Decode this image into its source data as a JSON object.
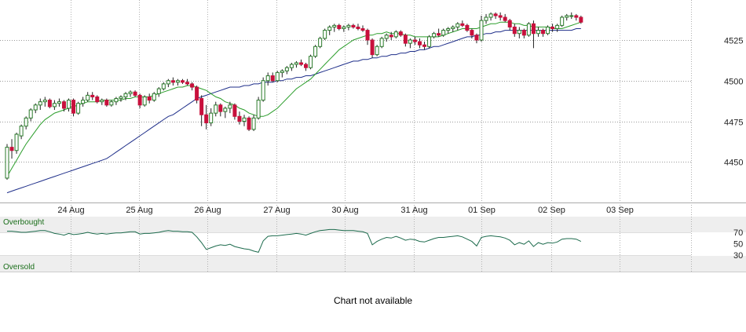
{
  "chart_data": [
    {
      "type": "candlestick",
      "x_tick_labels": [
        "24 Aug",
        "25 Aug",
        "26 Aug",
        "27 Aug",
        "30 Aug",
        "31 Aug",
        "01 Sep",
        "02 Sep",
        "03 Sep"
      ],
      "y_tick_labels": [
        "4450",
        "4475",
        "4500",
        "4525"
      ],
      "ylim": [
        4428,
        4553
      ],
      "grid": true,
      "colors": {
        "up": "#ffffff",
        "down": "#c8103c",
        "wick": "#222222",
        "sma_short": "#2a9d2a",
        "sma_long": "#1f2f8a",
        "grid": "#9a9a9a"
      },
      "candles": [
        [
          4440,
          4461,
          4439,
          4459
        ],
        [
          4459,
          4464,
          4452,
          4457
        ],
        [
          4457,
          4468,
          4455,
          4467
        ],
        [
          4466,
          4473,
          4464,
          4472
        ],
        [
          4472,
          4478,
          4470,
          4477
        ],
        [
          4477,
          4483,
          4475,
          4482
        ],
        [
          4482,
          4486,
          4480,
          4485
        ],
        [
          4485,
          4489,
          4482,
          4487
        ],
        [
          4487,
          4490,
          4484,
          4488
        ],
        [
          4488,
          4489,
          4483,
          4484
        ],
        [
          4484,
          4488,
          4482,
          4486
        ],
        [
          4486,
          4489,
          4484,
          4487
        ],
        [
          4487,
          4488,
          4481,
          4483
        ],
        [
          4483,
          4489,
          4481,
          4488
        ],
        [
          4488,
          4489,
          4478,
          4480
        ],
        [
          4480,
          4487,
          4479,
          4486
        ],
        [
          4486,
          4490,
          4484,
          4488
        ],
        [
          4488,
          4493,
          4487,
          4491
        ],
        [
          4491,
          4493,
          4488,
          4490
        ],
        [
          4490,
          4491,
          4486,
          4487
        ],
        [
          4487,
          4489,
          4485,
          4488
        ],
        [
          4488,
          4489,
          4484,
          4485
        ],
        [
          4485,
          4488,
          4484,
          4487
        ],
        [
          4487,
          4490,
          4485,
          4489
        ],
        [
          4489,
          4491,
          4487,
          4490
        ],
        [
          4490,
          4493,
          4488,
          4492
        ],
        [
          4492,
          4494,
          4490,
          4493
        ],
        [
          4493,
          4494,
          4490,
          4491
        ],
        [
          4491,
          4492,
          4483,
          4485
        ],
        [
          4485,
          4491,
          4484,
          4490
        ],
        [
          4490,
          4492,
          4486,
          4488
        ],
        [
          4488,
          4493,
          4487,
          4492
        ],
        [
          4492,
          4496,
          4490,
          4495
        ],
        [
          4495,
          4499,
          4494,
          4498
        ],
        [
          4498,
          4501,
          4496,
          4500
        ],
        [
          4500,
          4502,
          4497,
          4499
        ],
        [
          4499,
          4501,
          4497,
          4500
        ],
        [
          4500,
          4501,
          4498,
          4499
        ],
        [
          4499,
          4501,
          4497,
          4498
        ],
        [
          4498,
          4499,
          4494,
          4496
        ],
        [
          4496,
          4497,
          4486,
          4488
        ],
        [
          4489,
          4491,
          4472,
          4479
        ],
        [
          4479,
          4485,
          4470,
          4474
        ],
        [
          4474,
          4483,
          4472,
          4480
        ],
        [
          4480,
          4487,
          4478,
          4485
        ],
        [
          4485,
          4486,
          4478,
          4481
        ],
        [
          4481,
          4484,
          4477,
          4483
        ],
        [
          4483,
          4487,
          4480,
          4485
        ],
        [
          4485,
          4486,
          4476,
          4478
        ],
        [
          4478,
          4481,
          4473,
          4475
        ],
        [
          4475,
          4479,
          4472,
          4477
        ],
        [
          4477,
          4478,
          4469,
          4470
        ],
        [
          4470,
          4479,
          4469,
          4477
        ],
        [
          4477,
          4490,
          4476,
          4488
        ],
        [
          4488,
          4502,
          4487,
          4500
        ],
        [
          4500,
          4505,
          4497,
          4503
        ],
        [
          4503,
          4505,
          4499,
          4500
        ],
        [
          4500,
          4506,
          4499,
          4505
        ],
        [
          4505,
          4507,
          4502,
          4506
        ],
        [
          4506,
          4509,
          4504,
          4508
        ],
        [
          4508,
          4511,
          4506,
          4510
        ],
        [
          4510,
          4512,
          4508,
          4511
        ],
        [
          4511,
          4513,
          4509,
          4510
        ],
        [
          4510,
          4511,
          4506,
          4508
        ],
        [
          4508,
          4516,
          4507,
          4515
        ],
        [
          4515,
          4522,
          4514,
          4521
        ],
        [
          4521,
          4527,
          4520,
          4526
        ],
        [
          4526,
          4532,
          4525,
          4531
        ],
        [
          4531,
          4534,
          4528,
          4533
        ],
        [
          4533,
          4535,
          4530,
          4534
        ],
        [
          4534,
          4535,
          4531,
          4532
        ],
        [
          4532,
          4534,
          4530,
          4533
        ],
        [
          4533,
          4535,
          4531,
          4534
        ],
        [
          4534,
          4535,
          4532,
          4533
        ],
        [
          4533,
          4535,
          4531,
          4532
        ],
        [
          4532,
          4534,
          4530,
          4531
        ],
        [
          4531,
          4532,
          4522,
          4525
        ],
        [
          4525,
          4526,
          4514,
          4516
        ],
        [
          4516,
          4522,
          4515,
          4521
        ],
        [
          4521,
          4527,
          4520,
          4526
        ],
        [
          4526,
          4529,
          4524,
          4528
        ],
        [
          4528,
          4530,
          4525,
          4527
        ],
        [
          4527,
          4531,
          4526,
          4530
        ],
        [
          4530,
          4531,
          4527,
          4528
        ],
        [
          4528,
          4529,
          4521,
          4523
        ],
        [
          4523,
          4526,
          4520,
          4525
        ],
        [
          4525,
          4527,
          4522,
          4524
        ],
        [
          4524,
          4526,
          4520,
          4522
        ],
        [
          4522,
          4524,
          4519,
          4521
        ],
        [
          4521,
          4528,
          4520,
          4527
        ],
        [
          4527,
          4530,
          4526,
          4529
        ],
        [
          4529,
          4532,
          4527,
          4528
        ],
        [
          4528,
          4532,
          4527,
          4531
        ],
        [
          4531,
          4533,
          4529,
          4532
        ],
        [
          4532,
          4534,
          4530,
          4533
        ],
        [
          4533,
          4536,
          4531,
          4535
        ],
        [
          4535,
          4537,
          4533,
          4534
        ],
        [
          4534,
          4535,
          4530,
          4531
        ],
        [
          4531,
          4532,
          4526,
          4528
        ],
        [
          4528,
          4529,
          4523,
          4525
        ],
        [
          4525,
          4540,
          4524,
          4537
        ],
        [
          4537,
          4541,
          4535,
          4539
        ],
        [
          4539,
          4542,
          4537,
          4541
        ],
        [
          4541,
          4542,
          4538,
          4540
        ],
        [
          4540,
          4542,
          4537,
          4539
        ],
        [
          4539,
          4541,
          4536,
          4537
        ],
        [
          4537,
          4538,
          4531,
          4533
        ],
        [
          4533,
          4535,
          4527,
          4529
        ],
        [
          4529,
          4533,
          4526,
          4531
        ],
        [
          4531,
          4532,
          4526,
          4528
        ],
        [
          4528,
          4536,
          4527,
          4535
        ],
        [
          4535,
          4537,
          4520,
          4529
        ],
        [
          4529,
          4533,
          4527,
          4531
        ],
        [
          4531,
          4532,
          4527,
          4529
        ],
        [
          4529,
          4534,
          4528,
          4533
        ],
        [
          4533,
          4535,
          4530,
          4532
        ],
        [
          4532,
          4535,
          4530,
          4534
        ],
        [
          4534,
          4540,
          4533,
          4539
        ],
        [
          4539,
          4541,
          4537,
          4540
        ],
        [
          4540,
          4542,
          4538,
          4540
        ],
        [
          4540,
          4541,
          4537,
          4539
        ],
        [
          4539,
          4540,
          4535,
          4536
        ]
      ],
      "sma_short": [
        4441,
        4446,
        4451,
        4456,
        4461,
        4465,
        4469,
        4473,
        4476,
        4478,
        4480,
        4481,
        4482,
        4483,
        4484,
        4485,
        4486,
        4487,
        4487,
        4487,
        4488,
        4488,
        4488,
        4488,
        4488,
        4489,
        4489,
        4490,
        4490,
        4490,
        4490,
        4491,
        4492,
        4493,
        4494,
        4495,
        4496,
        4496,
        4497,
        4497,
        4496,
        4495,
        4494,
        4492,
        4490,
        4489,
        4487,
        4486,
        4485,
        4483,
        4482,
        4480,
        4479,
        4478,
        4478,
        4479,
        4481,
        4483,
        4486,
        4489,
        4492,
        4495,
        4497,
        4499,
        4501,
        4504,
        4507,
        4510,
        4513,
        4516,
        4519,
        4521,
        4523,
        4525,
        4526,
        4527,
        4528,
        4528,
        4529,
        4529,
        4530,
        4529,
        4529,
        4529,
        4528,
        4528,
        4527,
        4527,
        4527,
        4527,
        4527,
        4527,
        4528,
        4529,
        4530,
        4531,
        4532,
        4532,
        4532,
        4532,
        4533,
        4534,
        4535,
        4535,
        4536,
        4536,
        4536,
        4535,
        4535,
        4534,
        4534,
        4533,
        4533,
        4533,
        4533,
        4532,
        4532,
        4532,
        4533,
        4534,
        4535,
        4536
      ],
      "sma_long": [
        4431,
        4432,
        4433,
        4434,
        4435,
        4436,
        4437,
        4438,
        4439,
        4440,
        4441,
        4442,
        4443,
        4444,
        4445,
        4446,
        4447,
        4448,
        4449,
        4450,
        4451,
        4452,
        4454,
        4456,
        4458,
        4460,
        4462,
        4464,
        4466,
        4468,
        4470,
        4472,
        4474,
        4476,
        4478,
        4479,
        4481,
        4483,
        4485,
        4487,
        4489,
        4490,
        4491,
        4492,
        4493,
        4494,
        4495,
        4496,
        4496,
        4496,
        4497,
        4497,
        4498,
        4498,
        4499,
        4499,
        4499,
        4500,
        4500,
        4501,
        4501,
        4502,
        4502,
        4503,
        4503,
        4504,
        4505,
        4506,
        4507,
        4508,
        4509,
        4510,
        4511,
        4512,
        4512,
        4513,
        4513,
        4514,
        4514,
        4515,
        4515,
        4516,
        4516,
        4517,
        4517,
        4518,
        4518,
        4519,
        4519,
        4520,
        4521,
        4521,
        4522,
        4523,
        4524,
        4525,
        4526,
        4527,
        4527,
        4528,
        4528,
        4529,
        4529,
        4530,
        4530,
        4531,
        4531,
        4531,
        4531,
        4531,
        4531,
        4531,
        4531,
        4531,
        4531,
        4531,
        4531,
        4531,
        4531,
        4531,
        4532,
        4532
      ]
    },
    {
      "type": "line",
      "y_tick_labels": [
        "30",
        "50",
        "70"
      ],
      "ylim": [
        10,
        100
      ],
      "zone_labels": {
        "upper": "Overbought",
        "lower": "Oversold"
      },
      "thresholds": [
        30,
        70
      ],
      "colors": {
        "line": "#1d6b4d",
        "zone": "#eeeeee"
      },
      "values": [
        72,
        72,
        71,
        70,
        70,
        71,
        72,
        73,
        73,
        71,
        68,
        67,
        65,
        68,
        66,
        67,
        68,
        70,
        68,
        67,
        68,
        67,
        68,
        69,
        69,
        70,
        71,
        71,
        67,
        68,
        68,
        69,
        70,
        72,
        73,
        72,
        72,
        71,
        71,
        70,
        62,
        52,
        40,
        43,
        46,
        48,
        47,
        49,
        45,
        43,
        41,
        40,
        37,
        35,
        55,
        63,
        64,
        64,
        65,
        66,
        67,
        68,
        67,
        65,
        68,
        71,
        73,
        74,
        75,
        75,
        74,
        73,
        73,
        73,
        72,
        71,
        68,
        48,
        54,
        58,
        61,
        60,
        63,
        60,
        56,
        58,
        57,
        54,
        53,
        56,
        59,
        61,
        61,
        62,
        63,
        64,
        62,
        58,
        54,
        46,
        61,
        63,
        64,
        63,
        62,
        60,
        56,
        48,
        52,
        49,
        55,
        45,
        52,
        49,
        52,
        51,
        53,
        58,
        59,
        59,
        58,
        54
      ]
    }
  ],
  "footer_note": "Chart not available"
}
